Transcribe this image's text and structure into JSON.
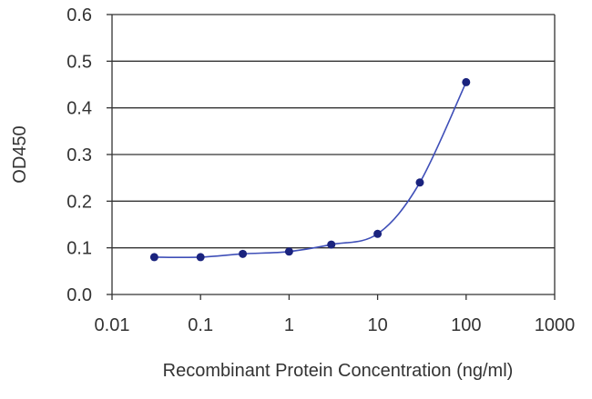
{
  "chart_data": {
    "type": "line",
    "title": "",
    "xlabel": "Recombinant Protein Concentration (ng/ml)",
    "ylabel": "OD450",
    "x_scale": "log",
    "xlim": [
      0.01,
      1000
    ],
    "ylim": [
      0.0,
      0.6
    ],
    "x_ticks": [
      0.01,
      0.1,
      1,
      10,
      100,
      1000
    ],
    "x_tick_labels": [
      "0.01",
      "0.1",
      "1",
      "10",
      "100",
      "1000"
    ],
    "y_ticks": [
      0.0,
      0.1,
      0.2,
      0.3,
      0.4,
      0.5,
      0.6
    ],
    "y_tick_labels": [
      "0.0",
      "0.1",
      "0.2",
      "0.3",
      "0.4",
      "0.5",
      "0.6"
    ],
    "grid": "horizontal",
    "legend": "none",
    "series": [
      {
        "x": [
          0.03,
          0.1,
          0.3,
          1,
          3,
          10,
          30,
          100
        ],
        "y": [
          0.08,
          0.08,
          0.087,
          0.092,
          0.107,
          0.13,
          0.24,
          0.455
        ],
        "marker": "circle",
        "color": "#1a237e",
        "line_color": "#3f4fb8"
      }
    ]
  }
}
